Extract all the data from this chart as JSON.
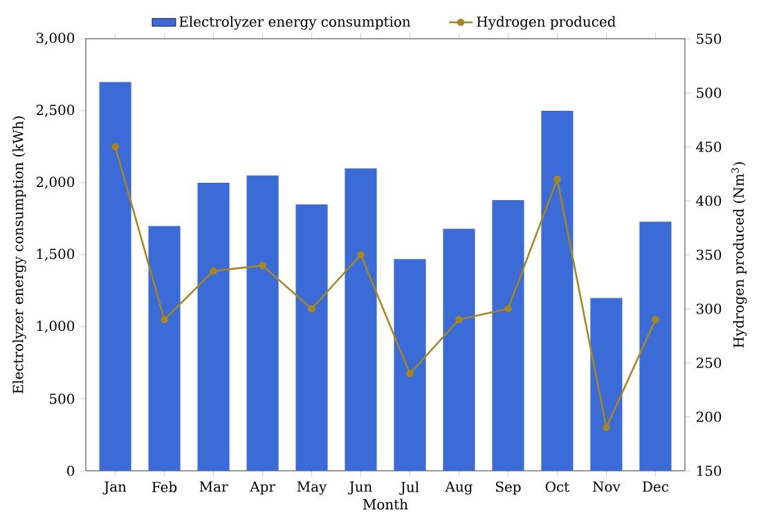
{
  "chart_data": {
    "type": "bar",
    "xlabel": "Month",
    "ylabel": "Electrolyzer energy consumption (kWh)",
    "y2label": "Hydrogen produced (Nm$^{3}$)",
    "categories": [
      "Jan",
      "Feb",
      "Mar",
      "Apr",
      "May",
      "Jun",
      "Jul",
      "Aug",
      "Sep",
      "Oct",
      "Nov",
      "Dec"
    ],
    "series": [
      {
        "name": "Electrolyzer energy consumption",
        "color": "#3a6bd6",
        "values": [
          2700,
          1700,
          2000,
          2050,
          1850,
          2100,
          1470,
          1680,
          1880,
          2500,
          1200,
          1730
        ]
      },
      {
        "name": "Hydrogen produced",
        "type": "line",
        "axis": "y2",
        "color": "#a8861e",
        "marker": "circle",
        "values": [
          450,
          290,
          335,
          340,
          300,
          350,
          240,
          290,
          300,
          420,
          190,
          290
        ]
      }
    ],
    "ylim": [
      0,
      3000
    ],
    "yticks": [
      0,
      {
        "value": 500,
        "label": "500"
      },
      {
        "value": 1000,
        "label": "1,000"
      },
      {
        "value": 1500,
        "label": "1,500"
      },
      {
        "value": 2000,
        "label": "2,000"
      },
      {
        "value": 2500,
        "label": "2,500"
      },
      {
        "value": 3000,
        "label": "3,000"
      }
    ],
    "y2lim": [
      150,
      550
    ],
    "y2ticks": [
      150,
      200,
      250,
      300,
      350,
      400,
      450,
      500,
      550
    ],
    "legend": "top",
    "grid": false
  }
}
